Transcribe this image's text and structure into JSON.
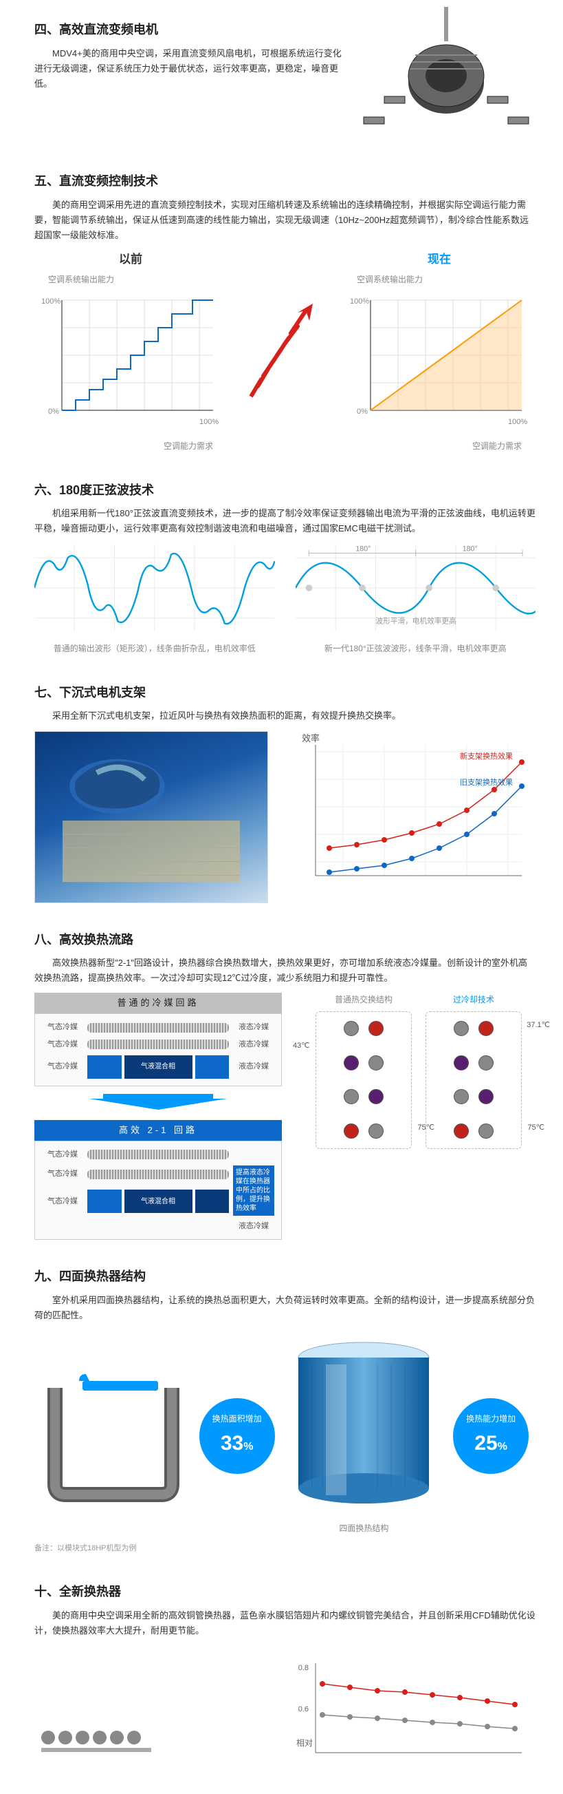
{
  "section4": {
    "heading": "四、高效直流变频电机",
    "body": "MDV4+美的商用中央空调，采用直流变频风扇电机，可根据系统运行变化进行无级调速，保证系统压力处于最优状态，运行效率更高，更稳定，噪音更低。"
  },
  "section5": {
    "heading": "五、直流变频控制技术",
    "body": "美的商用空调采用先进的直流变频控制技术，实现对压缩机转速及系统输出的连续精确控制，并根据实际空调运行能力需要，智能调节系统输出，保证从低速到高速的线性能力输出，实现无级调速（10Hz~200Hz超宽频调节），制冷综合性能系数远超国家一级能效标准。",
    "charts": {
      "before": {
        "title": "以前",
        "title_color": "#222222",
        "yAxisLabel": "空调系统输出能力",
        "xAxisLabel": "空调能力需求",
        "tick0": "0%",
        "tick100": "100%",
        "line_color": "#0d68c8",
        "type": "step"
      },
      "after": {
        "title": "现在",
        "title_color": "#0099ff",
        "yAxisLabel": "空调系统输出能力",
        "xAxisLabel": "空调能力需求",
        "tick0": "0%",
        "tick100": "100%",
        "line_color": "#ff9900",
        "type": "linear-fill"
      },
      "arrow_color": "#d8201a",
      "grid_color": "#dddddd",
      "axis_color": "#666666"
    }
  },
  "section6": {
    "heading": "六、180度正弦波技术",
    "body": "机组采用新一代180°正弦波直流变频技术，进一步的提高了制冷效率保证变频器输出电流为平滑的正弦波曲线，电机运转更平稳，噪音振动更小，运行效率更高有效控制谐波电流和电磁噪音，通过国家EMC电磁干扰测试。",
    "waves": {
      "label180": "180°",
      "left_caption": "普通的输出波形（矩形波），线条曲折杂乱，电机效率低",
      "right_caption": "新一代180°正弦波波形，线条平滑，电机效率更高",
      "right_inline": "波形平滑，电机效率更高",
      "line_color": "#00a0e0",
      "grid_color": "#eaeaea"
    }
  },
  "section7": {
    "heading": "七、下沉式电机支架",
    "body": "采用全新下沉式电机支架，拉近风叶与换热有效换热面积的距离，有效提升换热交换率。",
    "chart": {
      "yAxisLabel": "效率",
      "legend_new": "新支架换热效果",
      "legend_old": "旧支架换热效果",
      "new_color": "#d8201a",
      "old_color": "#0d68c8",
      "grid_color": "#eeeeee",
      "new_points": [
        [
          20,
          150
        ],
        [
          60,
          145
        ],
        [
          100,
          138
        ],
        [
          140,
          128
        ],
        [
          180,
          115
        ],
        [
          220,
          95
        ],
        [
          260,
          65
        ],
        [
          300,
          25
        ]
      ],
      "old_points": [
        [
          20,
          185
        ],
        [
          60,
          180
        ],
        [
          100,
          175
        ],
        [
          140,
          165
        ],
        [
          180,
          150
        ],
        [
          220,
          130
        ],
        [
          260,
          100
        ],
        [
          300,
          60
        ]
      ]
    }
  },
  "section8": {
    "heading": "八、高效换热流路",
    "body": "高效换热器新型\"2-1\"回路设计，换热器综合换热数增大，换热效果更好，亦可增加系统液态冷媒量。创新设计的室外机高效换热流路，提高换热效率。一次过冷却可实现12℃过冷度，减少系统阻力和提升可靠性。",
    "circuit": {
      "normal_title": "普通的冷媒回路",
      "efficient_title": "高效 2-1 回路",
      "gas_label": "气态冷媒",
      "liquid_label": "液态冷媒",
      "mix_label": "气液混合相",
      "note": "提高液态冷媒在换热器中所占的比例，提升换热效率"
    },
    "cooling": {
      "struct_title": "普通热交换结构",
      "overcool_title": "过冷却技术",
      "temp_left_top": "43℃",
      "temp_right_top": "37.1℃",
      "temp_bottom": "75℃",
      "colors": {
        "grey": "#888888",
        "red": "#c0231b",
        "purple": "#5a1e6e"
      }
    }
  },
  "section9": {
    "heading": "九、四面换热器结构",
    "body": "室外机采用四面换热器结构，让系统的换热总面积更大，大负荷运转时效率更高。全新的结构设计，进一步提高系统部分负荷的匹配性。",
    "badge1": {
      "top": "换热面积增加",
      "pct": "33",
      "unit": "%"
    },
    "badge2": {
      "top": "换热能力增加",
      "pct": "25",
      "unit": "%"
    },
    "badge_color": "#0099ff",
    "cyl_caption": "四面换热结构",
    "footnote": "备注：以模块式18HP机型为例"
  },
  "section10": {
    "heading": "十、全新换热器",
    "body": "美的商用中央空调采用全新的高效铜管换热器，蓝色亲水膜铝箔翅片和内螺纹铜管完美结合，并且创新采用CFD辅助优化设计，使换热器效率大大提升，耐用更节能。",
    "chart": {
      "ylabel": "相对",
      "ymax": "0.8",
      "ymid": "0.6",
      "red_color": "#d8201a",
      "grey_color": "#888888"
    }
  }
}
